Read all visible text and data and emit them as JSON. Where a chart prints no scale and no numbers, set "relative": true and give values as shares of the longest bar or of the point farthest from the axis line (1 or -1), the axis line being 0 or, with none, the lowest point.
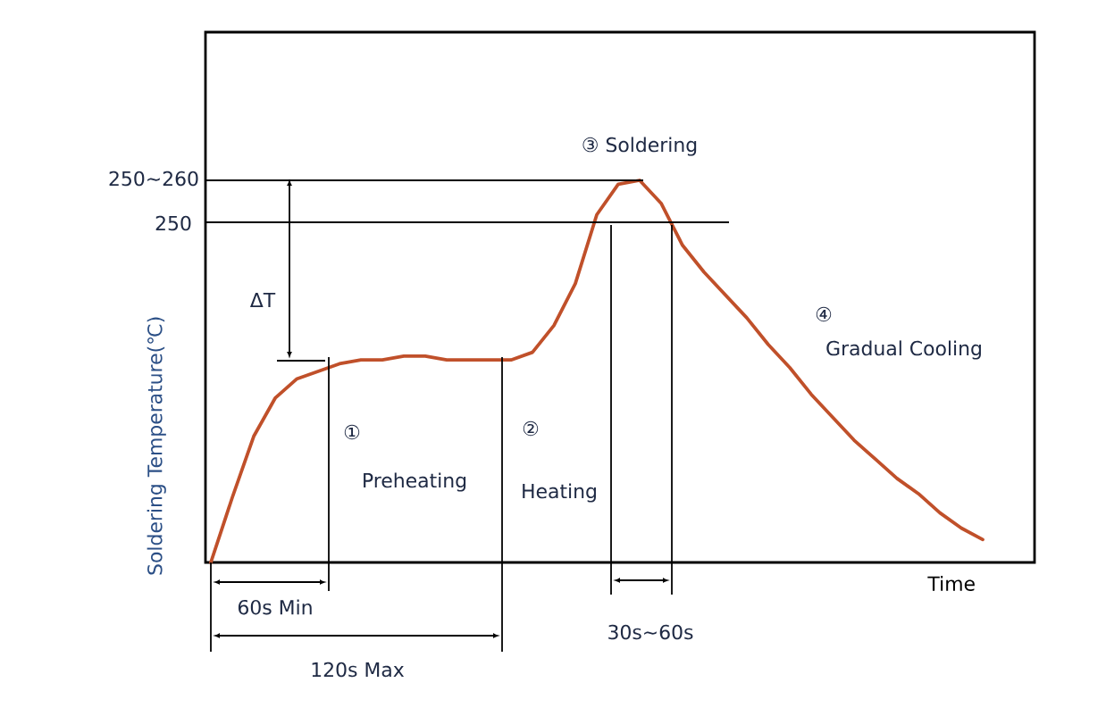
{
  "chart_data": {
    "type": "line",
    "relative": true,
    "xlabel": "Time",
    "ylabel": "Soldering Temperature(℃)",
    "categories": [
      null,
      null,
      null,
      null,
      null,
      null,
      null,
      null,
      null,
      null,
      null,
      null,
      null,
      null,
      null,
      null,
      null,
      null,
      null,
      null,
      null,
      null,
      null,
      null,
      null,
      null,
      null,
      null,
      null,
      null,
      null,
      null,
      null,
      null,
      null,
      null,
      null
    ],
    "series": [
      {
        "color": "#c0502a",
        "values": [
          0,
          0.17,
          0.33,
          0.43,
          0.48,
          0.5,
          0.52,
          0.53,
          0.53,
          0.54,
          0.54,
          0.53,
          0.53,
          0.53,
          0.53,
          0.55,
          0.62,
          0.73,
          0.91,
          0.99,
          1,
          0.94,
          0.83,
          0.76,
          0.7,
          0.64,
          0.57,
          0.51,
          0.44,
          0.38,
          0.32,
          0.27,
          0.22,
          0.18,
          0.13,
          0.09,
          0.06
        ]
      }
    ],
    "ref_lines": [
      {
        "axis": "y",
        "value": 1.0
      },
      {
        "axis": "y",
        "value": 0.89
      }
    ],
    "annotations": [
      "ΔT",
      "①",
      "Preheating",
      "②",
      "Heating",
      "③ Soldering",
      "④",
      "Gradual Cooling",
      "60s Min",
      "120s Max",
      "30s~60s",
      "250~260",
      "250"
    ],
    "marker": "none",
    "line_style": "solid"
  }
}
